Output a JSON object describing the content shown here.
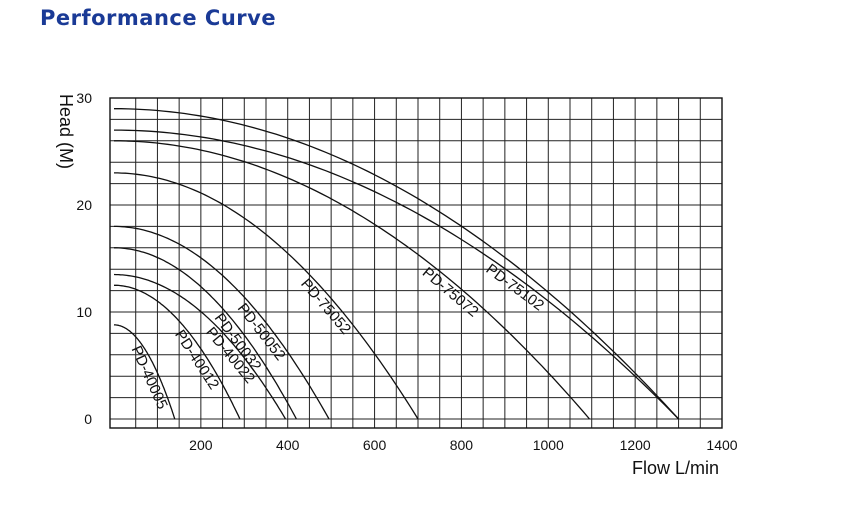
{
  "header": {
    "title": "Performance Curve"
  },
  "chart_data": {
    "type": "line",
    "title": "",
    "xlabel": "Flow L/min",
    "ylabel": "Head (M)",
    "xlim": [
      0,
      1400
    ],
    "ylim": [
      0,
      30
    ],
    "x_ticks": [
      200,
      400,
      600,
      800,
      1000,
      1200,
      1400
    ],
    "y_ticks": [
      0,
      10,
      20,
      30
    ],
    "x_tick_labels": [
      "200",
      "400",
      "600",
      "800",
      "1000",
      "1200",
      "1400"
    ],
    "y_tick_labels": [
      "0",
      "10",
      "20",
      "30"
    ],
    "grid": true,
    "colors": {
      "title": "#1a3a96",
      "lines": "#111111",
      "grid": "#222222"
    },
    "series": [
      {
        "name": "PD-40005",
        "max_head": 8.8,
        "max_flow": 140
      },
      {
        "name": "PD-40012",
        "max_head": 12.5,
        "max_flow": 290
      },
      {
        "name": "PD-40022",
        "max_head": 13.5,
        "max_flow": 395
      },
      {
        "name": "PD-50032",
        "max_head": 16.0,
        "max_flow": 420
      },
      {
        "name": "PD-50052",
        "max_head": 18.0,
        "max_flow": 495
      },
      {
        "name": "PD-75052",
        "max_head": 23.0,
        "max_flow": 700
      },
      {
        "name": "PD-75072",
        "max_head": 26.0,
        "max_flow": 1095
      },
      {
        "name": "PD-75102",
        "max_head": 27.0,
        "max_flow": 1300
      },
      {
        "name": "",
        "max_head": 29.0,
        "max_flow": 1300
      }
    ]
  }
}
